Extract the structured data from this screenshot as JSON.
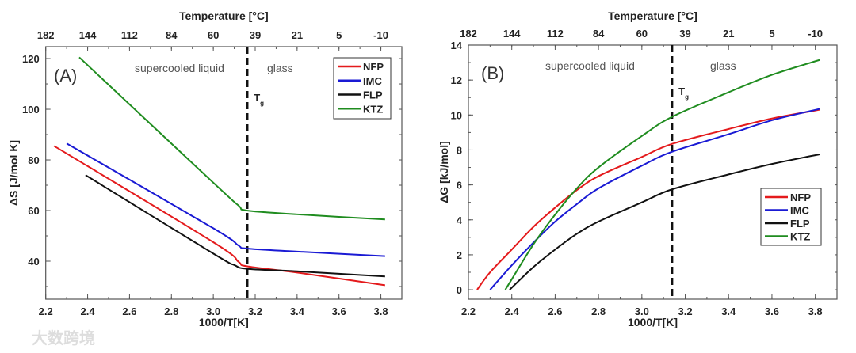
{
  "chart_data": [
    {
      "type": "line",
      "panel_label": "(A)",
      "title": "",
      "xlabel": "1000/T[K]",
      "ylabel": "ΔS [J/mol K]",
      "top_xlabel": "Temperature [°C]",
      "xlim": [
        2.2,
        3.9
      ],
      "ylim": [
        25,
        124.7
      ],
      "xticks": [
        2.2,
        2.4,
        2.6,
        2.8,
        3.0,
        3.2,
        3.4,
        3.6,
        3.8
      ],
      "xtick_labels": [
        "2.2",
        "2.4",
        "2.6",
        "2.8",
        "3.0",
        "3.2",
        "3.4",
        "3.6",
        "3.8"
      ],
      "yticks": [
        40,
        60,
        80,
        100,
        120
      ],
      "ytick_labels": [
        "40",
        "60",
        "80",
        "100",
        "120"
      ],
      "top_tick_labels": [
        "182",
        "144",
        "112",
        "84",
        "60",
        "39",
        "21",
        "5",
        "-10"
      ],
      "annotations": {
        "left_region": "supercooled liquid",
        "right_region": "glass",
        "tg_label": "T",
        "tg_sub": "g",
        "tg_x": 3.163
      },
      "legend_position": "top-right",
      "series": [
        {
          "name": "NFP",
          "color": "#e41a1c",
          "x": [
            2.24,
            3.0,
            3.12,
            3.16,
            3.4,
            3.82
          ],
          "y": [
            85.5,
            47.5,
            39.8,
            38.0,
            35.5,
            30.5
          ]
        },
        {
          "name": "IMC",
          "color": "#1a1ad4",
          "x": [
            2.3,
            3.0,
            3.12,
            3.16,
            3.4,
            3.82
          ],
          "y": [
            86.5,
            53.0,
            46.2,
            45.0,
            43.8,
            42.0
          ]
        },
        {
          "name": "FLP",
          "color": "#111111",
          "x": [
            2.39,
            3.0,
            3.1,
            3.16,
            3.4,
            3.82
          ],
          "y": [
            74.0,
            43.0,
            38.5,
            37.0,
            36.0,
            34.0
          ]
        },
        {
          "name": "KTZ",
          "color": "#1f8c1f",
          "x": [
            2.36,
            3.0,
            3.12,
            3.16,
            3.4,
            3.82
          ],
          "y": [
            120.5,
            71.0,
            62.0,
            60.0,
            58.5,
            56.5
          ]
        }
      ]
    },
    {
      "type": "line",
      "panel_label": "(B)",
      "title": "",
      "xlabel": "1000/T[K]",
      "ylabel": "ΔG [kJ/mol]",
      "top_xlabel": "Temperature [°C]",
      "xlim": [
        2.2,
        3.9
      ],
      "ylim": [
        -0.54,
        14
      ],
      "xticks": [
        2.2,
        2.4,
        2.6,
        2.8,
        3.0,
        3.2,
        3.4,
        3.6,
        3.8
      ],
      "xtick_labels": [
        "2.2",
        "2.4",
        "2.6",
        "2.8",
        "3.0",
        "3.2",
        "3.4",
        "3.6",
        "3.8"
      ],
      "yticks": [
        0,
        2,
        4,
        6,
        8,
        10,
        12,
        14
      ],
      "ytick_labels": [
        "0",
        "2",
        "4",
        "6",
        "8",
        "10",
        "12",
        "14"
      ],
      "top_tick_labels": [
        "182",
        "144",
        "112",
        "84",
        "60",
        "39",
        "21",
        "5",
        "-10"
      ],
      "annotations": {
        "left_region": "supercooled liquid",
        "right_region": "glass",
        "tg_label": "T",
        "tg_sub": "g",
        "tg_x": 3.14
      },
      "legend_position": "center-right",
      "series": [
        {
          "name": "NFP",
          "color": "#e41a1c",
          "x": [
            2.24,
            2.3,
            2.4,
            2.5,
            2.6,
            2.7,
            2.8,
            3.0,
            3.14,
            3.4,
            3.6,
            3.82
          ],
          "y": [
            0,
            1.0,
            2.3,
            3.6,
            4.7,
            5.7,
            6.5,
            7.6,
            8.35,
            9.2,
            9.8,
            10.3
          ]
        },
        {
          "name": "IMC",
          "color": "#1a1ad4",
          "x": [
            2.3,
            2.4,
            2.5,
            2.6,
            2.7,
            2.8,
            3.0,
            3.14,
            3.4,
            3.6,
            3.82
          ],
          "y": [
            0,
            1.4,
            2.7,
            3.9,
            4.9,
            5.8,
            7.1,
            7.9,
            8.9,
            9.7,
            10.35
          ]
        },
        {
          "name": "FLP",
          "color": "#111111",
          "x": [
            2.39,
            2.5,
            2.6,
            2.7,
            2.8,
            3.0,
            3.14,
            3.4,
            3.6,
            3.82
          ],
          "y": [
            0,
            1.3,
            2.3,
            3.2,
            3.9,
            5.0,
            5.75,
            6.6,
            7.2,
            7.75
          ]
        },
        {
          "name": "KTZ",
          "color": "#1f8c1f",
          "x": [
            2.37,
            2.4,
            2.5,
            2.6,
            2.7,
            2.8,
            3.0,
            3.14,
            3.4,
            3.6,
            3.82
          ],
          "y": [
            0,
            0.6,
            2.6,
            4.3,
            5.8,
            7.0,
            8.8,
            9.9,
            11.3,
            12.3,
            13.15
          ]
        }
      ]
    }
  ],
  "watermark": "大数跨境"
}
